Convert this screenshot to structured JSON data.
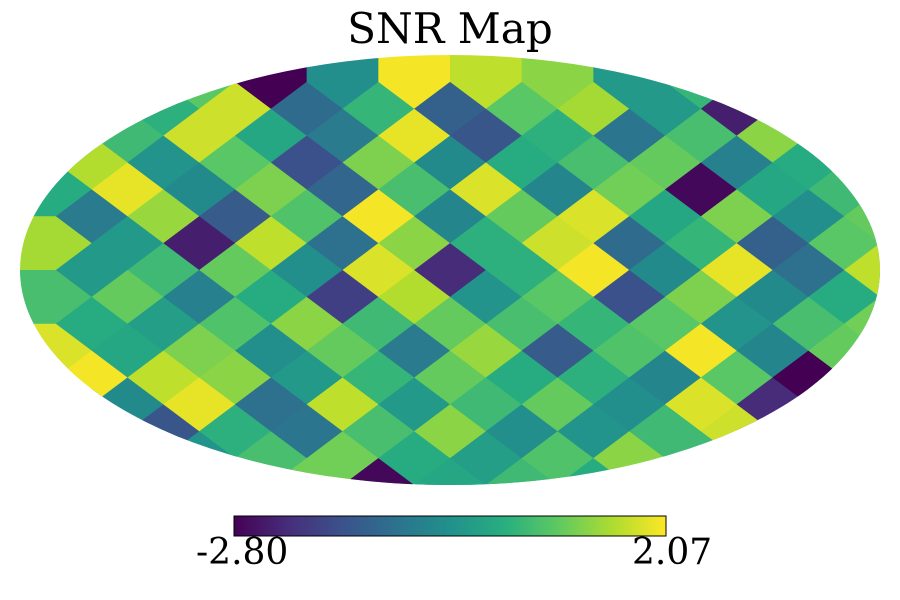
{
  "chart_data": {
    "type": "heatmap",
    "title": "SNR Map",
    "projection": "mollweide",
    "colormap": "viridis",
    "colorbar": {
      "min_label": "-2.80",
      "max_label": "2.07",
      "vmin": -2.8,
      "vmax": 2.07
    },
    "grid": false,
    "rows": 8,
    "cols": 12,
    "values": [
      [
        0.3,
        -0.6,
        0.8,
        -2.8,
        -0.4,
        2.0,
        1.6,
        1.2,
        -0.2,
        0.4,
        0.9,
        0.2
      ],
      [
        -0.3,
        0.5,
        1.7,
        0.1,
        -0.8,
        1.9,
        -1.5,
        0.3,
        -0.9,
        0.6,
        1.2,
        -0.4
      ],
      [
        0.2,
        1.9,
        -0.5,
        1.1,
        -1.2,
        0.6,
        1.8,
        -0.6,
        1.0,
        -2.7,
        0.1,
        0.5
      ],
      [
        1.4,
        -0.2,
        -2.4,
        1.6,
        -1.0,
        1.2,
        0.3,
        1.7,
        -1.1,
        0.4,
        -1.3,
        0.8
      ],
      [
        0.6,
        0.9,
        -0.7,
        0.2,
        -1.9,
        1.5,
        -0.3,
        0.8,
        -1.6,
        1.1,
        -0.5,
        0.2
      ],
      [
        1.8,
        0.1,
        1.1,
        -0.4,
        0.9,
        -0.8,
        1.3,
        -1.4,
        0.7,
        2.0,
        -0.6,
        0.9
      ],
      [
        2.0,
        -0.5,
        1.9,
        -1.0,
        1.6,
        -0.2,
        0.5,
        0.9,
        -0.4,
        1.8,
        -2.2,
        0.3
      ],
      [
        0.4,
        0.8,
        -0.3,
        0.6,
        1.0,
        0.2,
        -0.1,
        0.7,
        1.2,
        0.5,
        0.9,
        0.6
      ]
    ]
  }
}
